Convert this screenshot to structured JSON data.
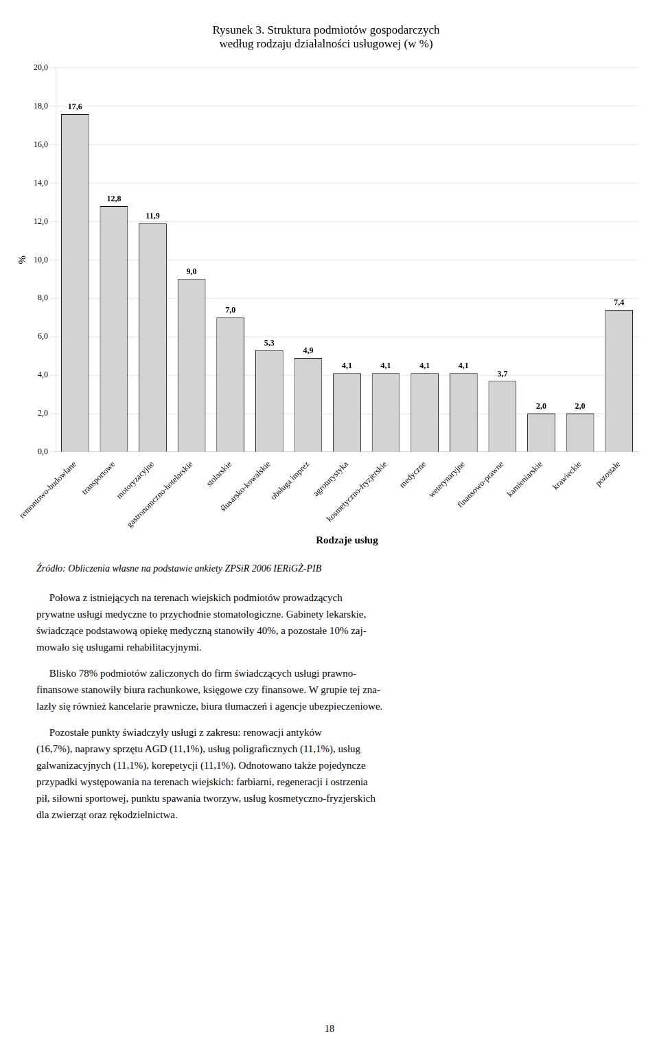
{
  "chart_data": {
    "type": "bar",
    "title": [
      "Rysunek 3. Struktura podmiotów gospodarczych",
      "według rodzaju działalności usługowej (w %)"
    ],
    "categories": [
      "remontowo-budowlane",
      "transportowe",
      "motoryzacyjne",
      "gastronomczno-hotelarskie",
      "stolarskie",
      "ślusarsko-kowalskie",
      "obsługa imprez",
      "agroturystyka",
      "kosmetyczno-fryzjerskie",
      "medyczne",
      "weterynaryjne",
      "finansowo-prawne",
      "kamieniarskie",
      "krawieckie",
      "pozostałe"
    ],
    "values": [
      17.6,
      12.8,
      11.9,
      9.0,
      7.0,
      5.3,
      4.9,
      4.1,
      4.1,
      4.1,
      4.1,
      3.7,
      2.0,
      2.0,
      7.4
    ],
    "value_labels": [
      "17,6",
      "12,8",
      "11,9",
      "9,0",
      "7,0",
      "5,3",
      "4,9",
      "4,1",
      "4,1",
      "4,1",
      "4,1",
      "3,7",
      "2,0",
      "2,0",
      "7,4"
    ],
    "data_labels": true,
    "color": "#d3d3d3",
    "xlabel": "Rodzaje usług",
    "ylabel": "%",
    "ylim": [
      0,
      20.0
    ],
    "yticks": [
      {
        "value": 0.0,
        "label": "0,0"
      },
      {
        "value": 2.0,
        "label": "2,0"
      },
      {
        "value": 4.0,
        "label": "4,0"
      },
      {
        "value": 6.0,
        "label": "6,0"
      },
      {
        "value": 8.0,
        "label": "8,0"
      },
      {
        "value": 10.0,
        "label": "10,0"
      },
      {
        "value": 12.0,
        "label": "12,0"
      },
      {
        "value": 14.0,
        "label": "14,0"
      },
      {
        "value": 16.0,
        "label": "16,0"
      },
      {
        "value": 18.0,
        "label": "18,0"
      },
      {
        "value": 20.0,
        "label": "20,0"
      }
    ],
    "grid": true,
    "source": "Źródło: Obliczenia własne na podstawie ankiety ZPSiR 2006 IERiGŻ-PIB",
    "annotations": [
      [
        "     Połowa z istniejących na terenach wiejskich podmiotów prowadzących",
        "prywatne usługi medyczne to przychodnie stomatologiczne. Gabinety lekarskie,",
        "świadczące podstawową opiekę medyczną stanowiły 40%, a pozostałe 10% zaj-",
        "mowało się usługami rehabilitacyjnymi."
      ],
      [
        "     Blisko 78% podmiotów zaliczonych do firm świadczących usługi prawno-",
        "finansowe stanowiły biura rachunkowe, księgowe czy finansowe. W grupie tej zna-",
        "lazły się również kancelarie prawnicze, biura tłumaczeń i agencje ubezpieczeniowe."
      ],
      [
        "     Pozostałe punkty świadczyły usługi z zakresu: renowacji antyków",
        "(16,7%), naprawy sprzętu AGD (11,1%), usług poligraficznych (11,1%), usług",
        "galwanizacyjnych (11,1%), korepetycji (11,1%). Odnotowano także pojedyncze",
        "przypadki występowania na terenach wiejskich: farbiarni, regeneracji i ostrzenia",
        "pił, siłowni sportowej, punktu spawania tworzyw, usług kosmetyczno-fryzjerskich",
        "dla zwierząt oraz rękodzielnictwa."
      ]
    ],
    "page_number": "18"
  }
}
